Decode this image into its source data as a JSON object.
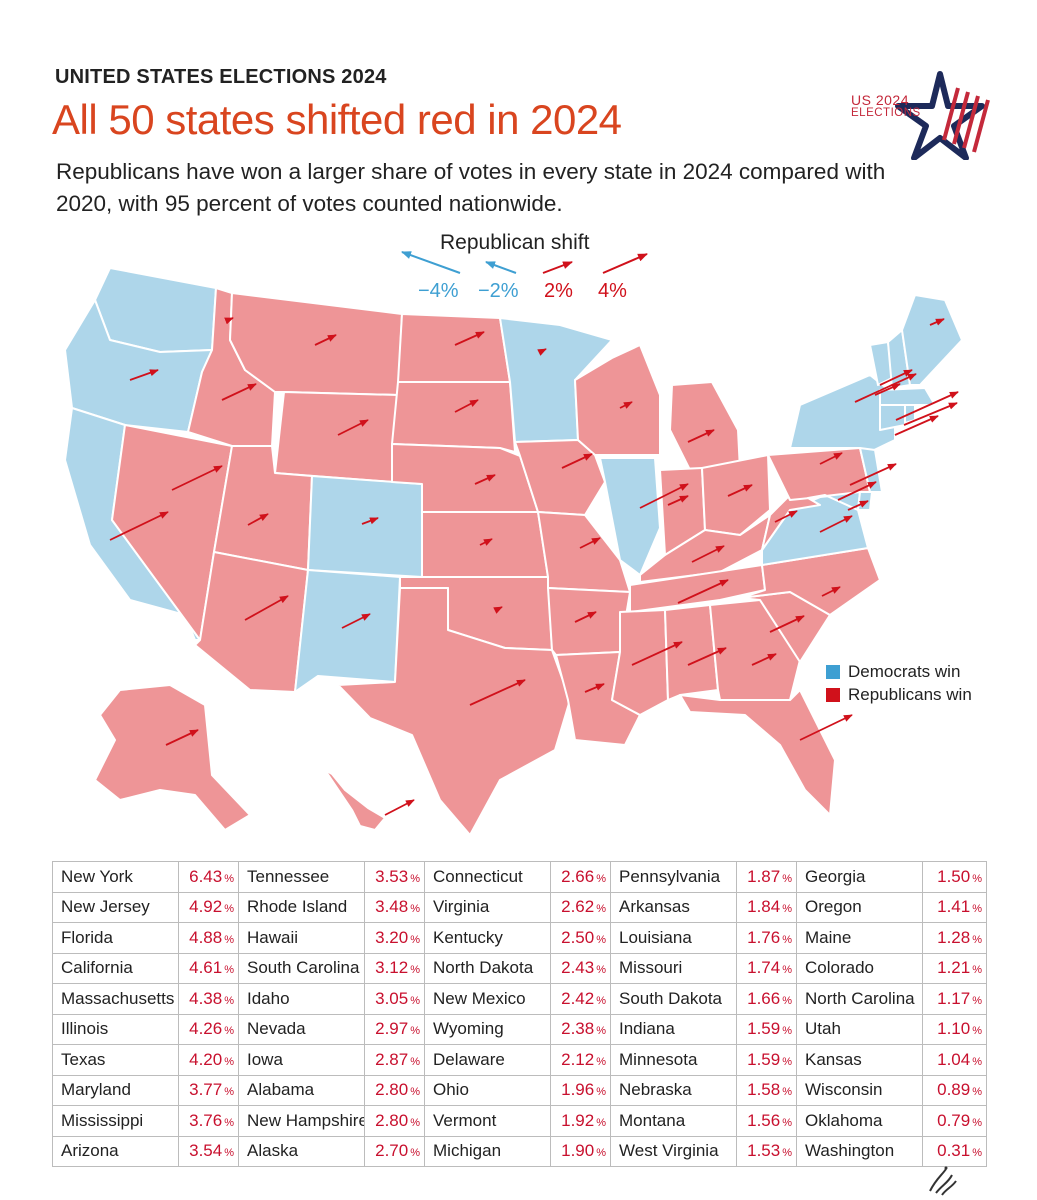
{
  "header": {
    "kicker": "UNITED STATES ELECTIONS 2024",
    "headline": "All 50 states shifted red in 2024",
    "subtitle": "Republicans have won a larger share of votes in every state in 2024 compared with 2020, with 95 percent of votes counted nationwide."
  },
  "logo": {
    "line1": "US 2024",
    "line2": "ELECTIONS"
  },
  "shift_legend": {
    "title": "Republican shift",
    "items": [
      {
        "label": "−4%",
        "value": -4
      },
      {
        "label": "−2%",
        "value": -2
      },
      {
        "label": "2%",
        "value": 2
      },
      {
        "label": "4%",
        "value": 4
      }
    ]
  },
  "win_legend": [
    {
      "label": "Democrats win",
      "color": "#3e9fd2"
    },
    {
      "label": "Republicans win",
      "color": "#d0111b"
    }
  ],
  "colors": {
    "dem_fill": "#aed6ea",
    "rep_fill": "#ee9597",
    "arrow_red": "#d0111b",
    "arrow_blue": "#3e9fd2",
    "accent": "#d9451f"
  },
  "states": [
    {
      "name": "New York",
      "shift": "6.43"
    },
    {
      "name": "New Jersey",
      "shift": "4.92"
    },
    {
      "name": "Florida",
      "shift": "4.88"
    },
    {
      "name": "California",
      "shift": "4.61"
    },
    {
      "name": "Massachusetts",
      "shift": "4.38"
    },
    {
      "name": "Illinois",
      "shift": "4.26"
    },
    {
      "name": "Texas",
      "shift": "4.20"
    },
    {
      "name": "Maryland",
      "shift": "3.77"
    },
    {
      "name": "Mississippi",
      "shift": "3.76"
    },
    {
      "name": "Arizona",
      "shift": "3.54"
    },
    {
      "name": "Tennessee",
      "shift": "3.53"
    },
    {
      "name": "Rhode Island",
      "shift": "3.48"
    },
    {
      "name": "Hawaii",
      "shift": "3.20"
    },
    {
      "name": "South Carolina",
      "shift": "3.12"
    },
    {
      "name": "Idaho",
      "shift": "3.05"
    },
    {
      "name": "Nevada",
      "shift": "2.97"
    },
    {
      "name": "Iowa",
      "shift": "2.87"
    },
    {
      "name": "Alabama",
      "shift": "2.80"
    },
    {
      "name": "New Hampshire",
      "shift": "2.80"
    },
    {
      "name": "Alaska",
      "shift": "2.70"
    },
    {
      "name": "Connecticut",
      "shift": "2.66"
    },
    {
      "name": "Virginia",
      "shift": "2.62"
    },
    {
      "name": "Kentucky",
      "shift": "2.50"
    },
    {
      "name": "North Dakota",
      "shift": "2.43"
    },
    {
      "name": "New Mexico",
      "shift": "2.42"
    },
    {
      "name": "Wyoming",
      "shift": "2.38"
    },
    {
      "name": "Delaware",
      "shift": "2.12"
    },
    {
      "name": "Ohio",
      "shift": "1.96"
    },
    {
      "name": "Vermont",
      "shift": "1.92"
    },
    {
      "name": "Michigan",
      "shift": "1.90"
    },
    {
      "name": "Pennsylvania",
      "shift": "1.87"
    },
    {
      "name": "Arkansas",
      "shift": "1.84"
    },
    {
      "name": "Louisiana",
      "shift": "1.76"
    },
    {
      "name": "Missouri",
      "shift": "1.74"
    },
    {
      "name": "South Dakota",
      "shift": "1.66"
    },
    {
      "name": "Indiana",
      "shift": "1.59"
    },
    {
      "name": "Minnesota",
      "shift": "1.59"
    },
    {
      "name": "Nebraska",
      "shift": "1.58"
    },
    {
      "name": "Montana",
      "shift": "1.56"
    },
    {
      "name": "West Virginia",
      "shift": "1.53"
    },
    {
      "name": "Georgia",
      "shift": "1.50"
    },
    {
      "name": "Oregon",
      "shift": "1.41"
    },
    {
      "name": "Maine",
      "shift": "1.28"
    },
    {
      "name": "Colorado",
      "shift": "1.21"
    },
    {
      "name": "North Carolina",
      "shift": "1.17"
    },
    {
      "name": "Utah",
      "shift": "1.10"
    },
    {
      "name": "Kansas",
      "shift": "1.04"
    },
    {
      "name": "Wisconsin",
      "shift": "0.89"
    },
    {
      "name": "Oklahoma",
      "shift": "0.79"
    },
    {
      "name": "Washington",
      "shift": "0.31"
    }
  ],
  "pct_symbol": "%"
}
